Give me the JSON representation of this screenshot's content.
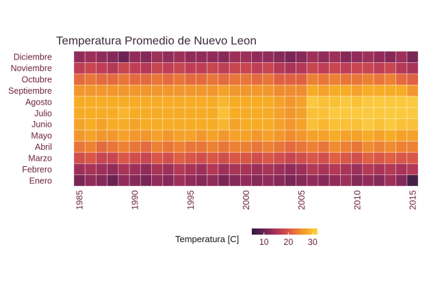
{
  "chart_data": {
    "type": "heatmap",
    "title": "Temperatura Promedio de Nuevo Leon",
    "xlabel": "",
    "ylabel": "",
    "x_years": [
      1985,
      1986,
      1987,
      1988,
      1989,
      1990,
      1991,
      1992,
      1993,
      1994,
      1995,
      1996,
      1997,
      1998,
      1999,
      2000,
      2001,
      2002,
      2003,
      2004,
      2005,
      2006,
      2007,
      2008,
      2009,
      2010,
      2011,
      2012,
      2013,
      2014,
      2015
    ],
    "x_tick_labels": [
      "1985",
      "1990",
      "1995",
      "2000",
      "2005",
      "2010",
      "2015"
    ],
    "x_ticks": [
      1985,
      1990,
      1995,
      2000,
      2005,
      2010,
      2015
    ],
    "months": [
      "Enero",
      "Febrero",
      "Marzo",
      "Abril",
      "Mayo",
      "Junio",
      "Julio",
      "Agosto",
      "Septiembre",
      "Octubre",
      "Noviembre",
      "Diciembre"
    ],
    "legend": {
      "title": "Temperatura [C]",
      "tick_labels": [
        "10",
        "20",
        "30"
      ],
      "ticks": [
        10,
        20,
        30
      ],
      "range": [
        5,
        32
      ],
      "colors": [
        "#2d1e3e",
        "#5e2050",
        "#8e2b5a",
        "#bb3b57",
        "#dc5a45",
        "#ee8432",
        "#f7ae26",
        "#fdd348"
      ]
    },
    "values": [
      [
        11,
        13,
        12,
        10,
        13,
        12,
        11,
        13,
        12,
        14,
        13,
        12,
        13,
        11,
        12,
        13,
        12,
        13,
        12,
        11,
        12,
        13,
        12,
        13,
        14,
        12,
        13,
        12,
        14,
        12,
        7
      ],
      [
        14,
        15,
        14,
        13,
        15,
        14,
        13,
        15,
        14,
        16,
        15,
        14,
        16,
        14,
        15,
        15,
        14,
        15,
        14,
        13,
        14,
        16,
        15,
        16,
        15,
        14,
        16,
        15,
        16,
        15,
        16
      ],
      [
        19,
        20,
        18,
        18,
        20,
        19,
        18,
        20,
        19,
        21,
        20,
        19,
        20,
        19,
        20,
        20,
        19,
        20,
        19,
        18,
        19,
        20,
        19,
        21,
        20,
        19,
        21,
        20,
        21,
        20,
        20
      ],
      [
        23,
        24,
        22,
        23,
        24,
        23,
        22,
        24,
        23,
        24,
        23,
        23,
        24,
        23,
        24,
        24,
        23,
        24,
        23,
        22,
        23,
        24,
        23,
        25,
        24,
        23,
        25,
        24,
        25,
        24,
        24
      ],
      [
        26,
        27,
        26,
        26,
        27,
        26,
        26,
        27,
        26,
        27,
        27,
        26,
        27,
        26,
        27,
        27,
        26,
        27,
        26,
        25,
        26,
        27,
        27,
        28,
        27,
        27,
        28,
        27,
        28,
        27,
        27
      ],
      [
        27,
        28,
        27,
        28,
        28,
        27,
        28,
        28,
        28,
        28,
        28,
        28,
        28,
        29,
        27,
        28,
        28,
        28,
        27,
        26,
        27,
        30,
        29,
        30,
        30,
        30,
        31,
        30,
        31,
        30,
        30
      ],
      [
        28,
        28,
        28,
        28,
        29,
        28,
        28,
        28,
        28,
        28,
        28,
        28,
        28,
        30,
        28,
        28,
        28,
        28,
        27,
        26,
        27,
        30,
        30,
        31,
        31,
        31,
        31,
        31,
        31,
        31,
        31
      ],
      [
        28,
        28,
        28,
        28,
        28,
        28,
        28,
        28,
        28,
        28,
        28,
        28,
        28,
        29,
        28,
        28,
        28,
        28,
        27,
        26,
        27,
        31,
        30,
        30,
        31,
        30,
        31,
        31,
        31,
        31,
        31
      ],
      [
        26,
        26,
        26,
        26,
        26,
        26,
        26,
        26,
        26,
        26,
        26,
        26,
        26,
        27,
        26,
        26,
        26,
        26,
        25,
        25,
        25,
        28,
        27,
        28,
        28,
        27,
        28,
        28,
        28,
        28,
        26
      ],
      [
        22,
        23,
        22,
        22,
        23,
        22,
        22,
        23,
        22,
        23,
        22,
        22,
        23,
        22,
        23,
        23,
        22,
        23,
        21,
        21,
        21,
        24,
        23,
        24,
        23,
        23,
        24,
        23,
        24,
        22,
        21
      ],
      [
        17,
        18,
        17,
        16,
        18,
        17,
        16,
        18,
        17,
        18,
        17,
        17,
        18,
        17,
        18,
        18,
        17,
        18,
        16,
        15,
        16,
        18,
        17,
        18,
        17,
        18,
        18,
        17,
        18,
        16,
        15
      ],
      [
        13,
        14,
        13,
        12,
        10,
        13,
        12,
        14,
        13,
        14,
        13,
        13,
        13,
        12,
        14,
        14,
        13,
        13,
        12,
        11,
        12,
        14,
        13,
        14,
        12,
        13,
        14,
        13,
        12,
        14,
        11
      ]
    ]
  }
}
